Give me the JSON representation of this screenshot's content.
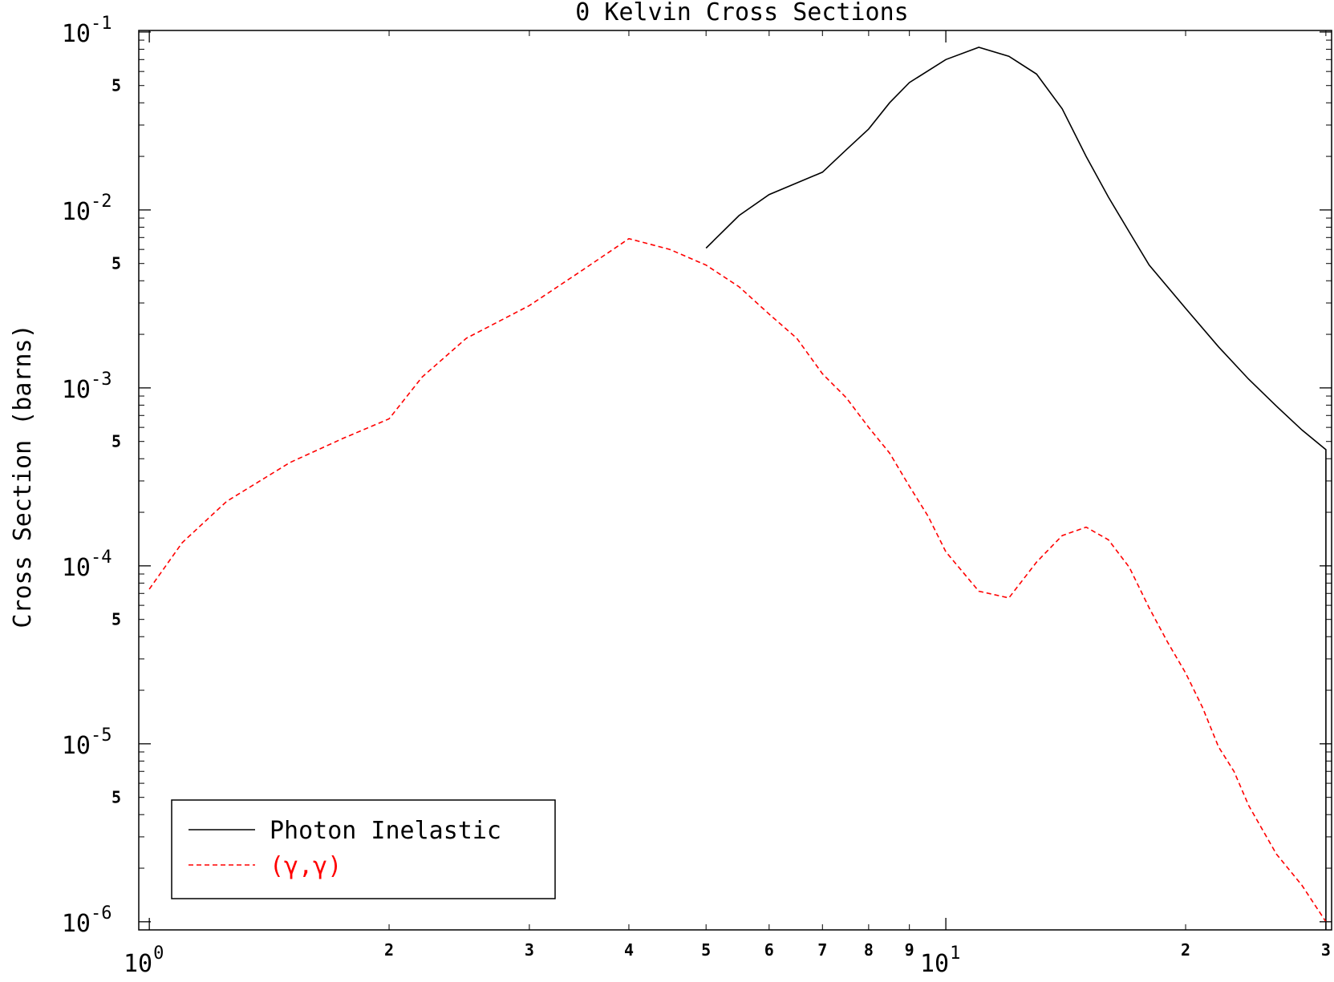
{
  "chart_data": {
    "type": "line",
    "title": "0 Kelvin Cross Sections",
    "xlabel": "",
    "ylabel": "Cross Section (barns)",
    "x_scale": "log",
    "y_scale": "log",
    "xlim": [
      0.97,
      30.5
    ],
    "ylim": [
      9e-07,
      0.102
    ],
    "grid": false,
    "legend_position": "bottom-left",
    "x_major_ticks": [
      {
        "value": 1,
        "base": "10",
        "exp": "0"
      },
      {
        "value": 10,
        "base": "10",
        "exp": "1"
      }
    ],
    "x_minor_ticks": [
      {
        "value": 2,
        "label": "2"
      },
      {
        "value": 3,
        "label": "3"
      },
      {
        "value": 4,
        "label": "4"
      },
      {
        "value": 5,
        "label": "5"
      },
      {
        "value": 6,
        "label": "6"
      },
      {
        "value": 7,
        "label": "7"
      },
      {
        "value": 8,
        "label": "8"
      },
      {
        "value": 9,
        "label": "9"
      },
      {
        "value": 20,
        "label": "2"
      },
      {
        "value": 30,
        "label": "3"
      }
    ],
    "y_major_ticks": [
      {
        "value": 0.1,
        "base": "10",
        "exp": "-1"
      },
      {
        "value": 0.01,
        "base": "10",
        "exp": "-2"
      },
      {
        "value": 0.001,
        "base": "10",
        "exp": "-3"
      },
      {
        "value": 0.0001,
        "base": "10",
        "exp": "-4"
      },
      {
        "value": 1e-05,
        "base": "10",
        "exp": "-5"
      },
      {
        "value": 1e-06,
        "base": "10",
        "exp": "-6"
      }
    ],
    "y_minor_ticks": [
      {
        "value": 0.05,
        "label": "5"
      },
      {
        "value": 0.005,
        "label": "5"
      },
      {
        "value": 0.0005,
        "label": "5"
      },
      {
        "value": 5e-05,
        "label": "5"
      },
      {
        "value": 5e-06,
        "label": "5"
      }
    ],
    "series": [
      {
        "name": "Photon Inelastic",
        "color": "#000000",
        "dash": "solid",
        "x": [
          5,
          5.5,
          6,
          7,
          7.5,
          8,
          8.5,
          9,
          10,
          11,
          12,
          13,
          14,
          15,
          16,
          17,
          18,
          20,
          22,
          24,
          26,
          28,
          30,
          30
        ],
        "y": [
          0.0061,
          0.0093,
          0.0122,
          0.0163,
          0.0218,
          0.0285,
          0.04,
          0.052,
          0.07,
          0.082,
          0.073,
          0.058,
          0.037,
          0.02,
          0.0118,
          0.0075,
          0.0049,
          0.0028,
          0.0017,
          0.00112,
          0.00079,
          0.00058,
          0.00045,
          9e-07
        ]
      },
      {
        "name": "(γ,γ)",
        "color": "#ff0000",
        "dash": "dashed",
        "x": [
          1,
          1.1,
          1.25,
          1.5,
          1.75,
          2,
          2.2,
          2.5,
          3,
          3.5,
          4,
          4.5,
          5,
          5.5,
          6,
          6.5,
          7,
          7.5,
          8,
          8.5,
          9,
          9.5,
          10,
          11,
          12,
          13,
          14,
          15,
          16,
          17,
          18,
          19,
          20,
          21,
          22,
          23,
          24,
          26,
          28,
          30
        ],
        "y": [
          7.4e-05,
          0.000135,
          0.00023,
          0.00038,
          0.00052,
          0.00067,
          0.00115,
          0.0019,
          0.0029,
          0.0046,
          0.0069,
          0.006,
          0.0049,
          0.0037,
          0.0026,
          0.0019,
          0.0012,
          0.00088,
          0.0006,
          0.00043,
          0.00028,
          0.00019,
          0.00012,
          7.2e-05,
          6.6e-05,
          0.000105,
          0.000148,
          0.000165,
          0.00014,
          9.8e-05,
          5.8e-05,
          3.7e-05,
          2.5e-05,
          1.6e-05,
          9.6e-06,
          7e-06,
          4.5e-06,
          2.4e-06,
          1.6e-06,
          1e-06
        ]
      }
    ],
    "legend": {
      "entries": [
        {
          "label": "Photon Inelastic",
          "color": "#000000"
        },
        {
          "label": "(γ,γ)",
          "color": "#ff0000"
        }
      ]
    }
  }
}
